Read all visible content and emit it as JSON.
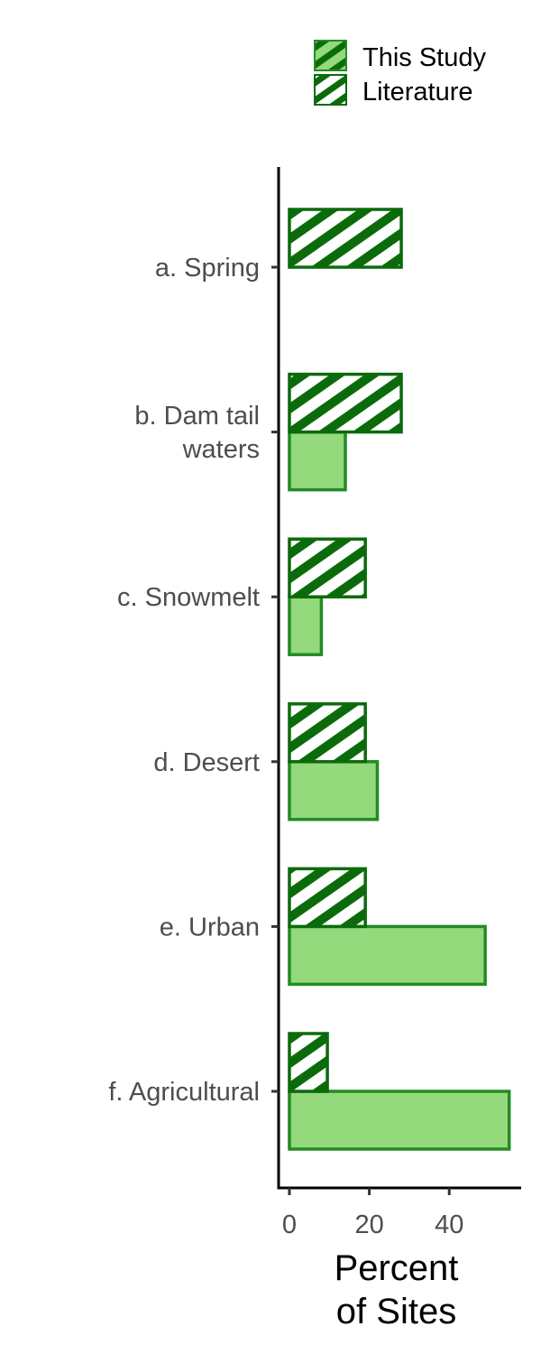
{
  "chart_data": {
    "type": "bar",
    "orientation": "horizontal",
    "categories": [
      [
        "a. Spring"
      ],
      [
        "b. Dam tail",
        "waters"
      ],
      [
        "c. Snowmelt"
      ],
      [
        "d. Desert"
      ],
      [
        "e. Urban"
      ],
      [
        "f. Agricultural"
      ]
    ],
    "series": [
      {
        "name": "This Study",
        "values": [
          0,
          14,
          8,
          22,
          49,
          55
        ],
        "fill": "#94d97c",
        "stroke": "#238b23",
        "pattern": "solid"
      },
      {
        "name": "Literature",
        "values": [
          28,
          28,
          19,
          19,
          19,
          9.5
        ],
        "fill": "#ffffff",
        "stroke": "#0b6b0b",
        "pattern": "hatch"
      }
    ],
    "xlabel": "Percent\nof Sites",
    "ylabel": "",
    "xlim": [
      -2.7,
      58
    ],
    "xticks": [
      0,
      20,
      40
    ],
    "grid": false,
    "legend_position": "top-right"
  }
}
